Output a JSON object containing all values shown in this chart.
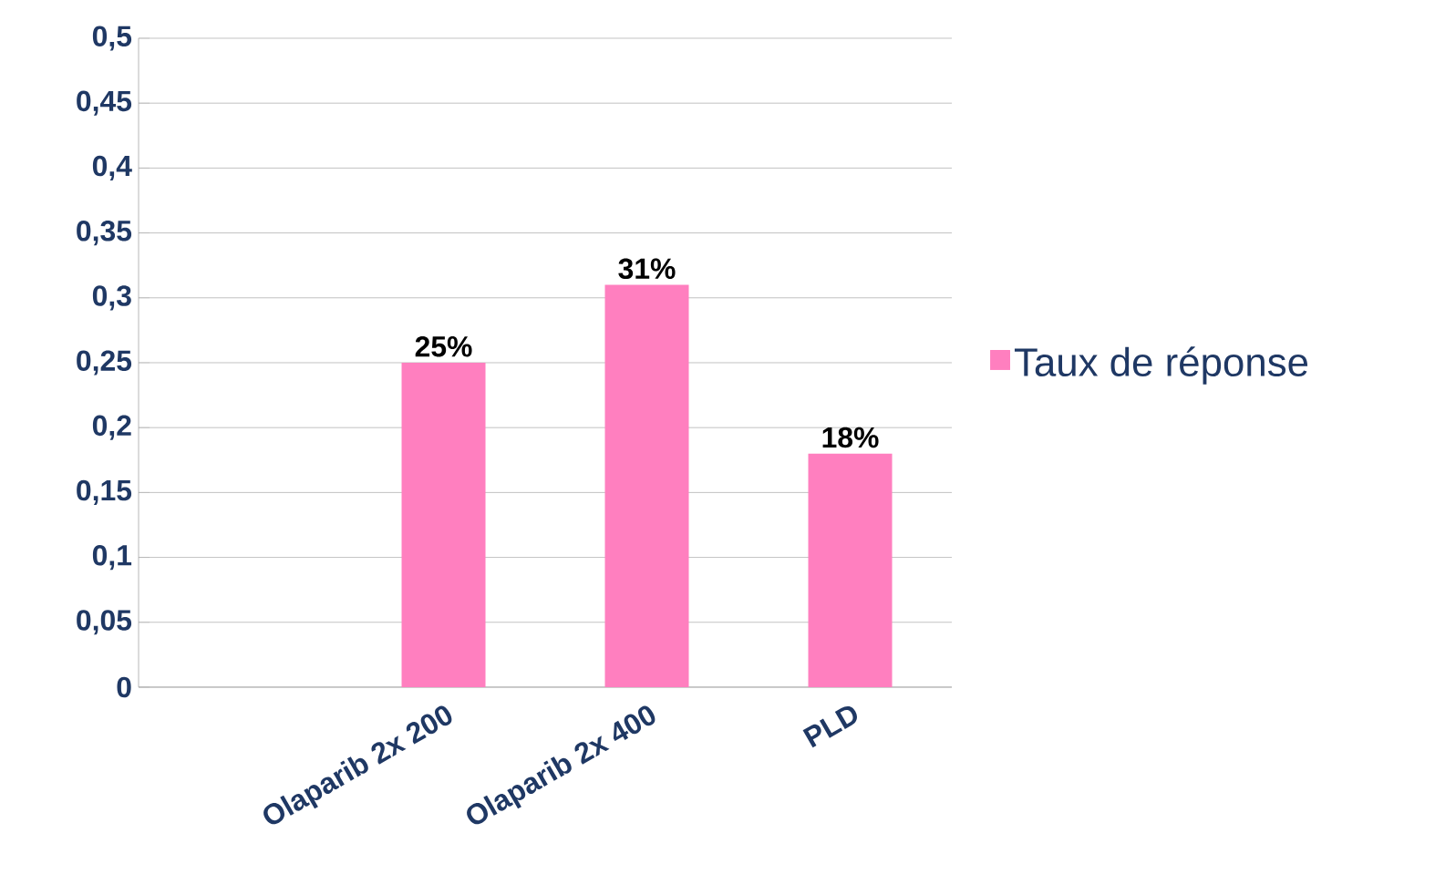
{
  "chart_data": {
    "type": "bar",
    "categories": [
      null,
      "Olaparib 2x 200",
      "Olaparib 2x 400",
      "PLD"
    ],
    "series": [
      {
        "name": "Taux de réponse",
        "color": "#ff7fbf",
        "values": [
          null,
          0.25,
          0.31,
          0.18
        ],
        "value_labels": [
          null,
          "25%",
          "31%",
          "18%"
        ]
      }
    ],
    "ylim": [
      0,
      0.5
    ],
    "yticks": [
      0,
      {
        "value": 0.05,
        "label": "0,05"
      },
      {
        "value": 0.1,
        "label": "0,1"
      },
      {
        "value": 0.15,
        "label": "0,15"
      },
      {
        "value": 0.2,
        "label": "0,2"
      },
      {
        "value": 0.25,
        "label": "0,25"
      },
      {
        "value": 0.3,
        "label": "0,3"
      },
      {
        "value": 0.35,
        "label": "0,35"
      },
      {
        "value": 0.4,
        "label": "0,4"
      },
      {
        "value": 0.45,
        "label": "0,45"
      },
      {
        "value": 0.5,
        "label": "0,5"
      }
    ],
    "grid": "y",
    "legend": "right"
  }
}
